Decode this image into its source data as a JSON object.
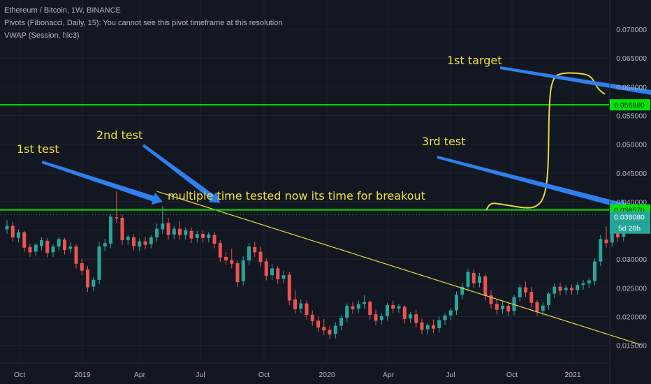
{
  "header": {
    "line1": "Ethereum / Bitcoin, 1W, BINANCE",
    "line2": "Pivots (Fibonacci, Daily, 15): You cannot see this pivot timeframe at this resolution",
    "line3": "VWAP (Session, hlc3)"
  },
  "annotations": {
    "test1": "1st test",
    "test2": "2nd test",
    "test3": "3rd test",
    "target": "1st target",
    "breakout": "multiple time tested now its time for breakout"
  },
  "colors": {
    "background": "#131722",
    "up": "#26a69a",
    "down": "#ef5350",
    "level_line": "#00e600",
    "trendline": "#e6d93a",
    "annotation": "#f0e03c",
    "arrow": "#2f80ed",
    "price_tag_bg": "#26a69a"
  },
  "chart_data": {
    "type": "candlestick",
    "timeframe": "1W",
    "x_tick_labels": [
      "Oct",
      "2019",
      "Apr",
      "Jul",
      "Oct",
      "2020",
      "Apr",
      "Jul",
      "Oct",
      "2021"
    ],
    "y_tick_labels": [
      "0.070000",
      "0.065000",
      "0.060000",
      "0.055000",
      "0.050000",
      "0.045000",
      "0.040000",
      "0.035000",
      "0.030000",
      "0.025000",
      "0.020000",
      "0.015000"
    ],
    "ylim": [
      0.0138,
      0.0745
    ],
    "levels": [
      {
        "label": "0.056860",
        "value": 0.05686
      },
      {
        "label": "0.038570",
        "value": 0.03857
      }
    ],
    "current_price": {
      "label": "0.038080",
      "value": 0.03808,
      "countdown": "5d 20h"
    },
    "trendline": [
      {
        "week": 26,
        "value": 0.0418
      },
      {
        "week": 110,
        "value": 0.0151
      }
    ],
    "projection": [
      [
        0.0385,
        0.0398,
        0.0396,
        0.0392,
        0.0389,
        0.039,
        0.0403,
        0.0445,
        0.0578,
        0.0618,
        0.0624,
        0.0624,
        0.062,
        0.0596,
        0.0587
      ]
    ],
    "candles": [
      [
        0.0352,
        0.0368,
        0.0358
      ],
      [
        0.0358,
        0.0365,
        0.0338
      ],
      [
        0.0337,
        0.0352,
        0.0347
      ],
      [
        0.0347,
        0.0349,
        0.032
      ],
      [
        0.0321,
        0.0327,
        0.0312
      ],
      [
        0.0313,
        0.0328,
        0.0325
      ],
      [
        0.0323,
        0.0338,
        0.0333
      ],
      [
        0.0332,
        0.0337,
        0.0311
      ],
      [
        0.0312,
        0.0326,
        0.0322
      ],
      [
        0.0322,
        0.0339,
        0.0335
      ],
      [
        0.0334,
        0.0337,
        0.0316
      ],
      [
        0.0318,
        0.0329,
        0.0322
      ],
      [
        0.0322,
        0.0326,
        0.0292
      ],
      [
        0.0293,
        0.0301,
        0.028
      ],
      [
        0.0282,
        0.0288,
        0.0251
      ],
      [
        0.0252,
        0.0269,
        0.0264
      ],
      [
        0.0264,
        0.033,
        0.0322
      ],
      [
        0.0322,
        0.0335,
        0.0328
      ],
      [
        0.0327,
        0.0378,
        0.0374
      ],
      [
        0.0373,
        0.0418,
        0.0371
      ],
      [
        0.0372,
        0.0377,
        0.0333
      ],
      [
        0.0333,
        0.0343,
        0.0339
      ],
      [
        0.0338,
        0.0343,
        0.0323
      ],
      [
        0.0322,
        0.0336,
        0.0331
      ],
      [
        0.0331,
        0.0339,
        0.0325
      ],
      [
        0.0326,
        0.0342,
        0.0338
      ],
      [
        0.0338,
        0.0362,
        0.0353
      ],
      [
        0.0352,
        0.0392,
        0.0362
      ],
      [
        0.0363,
        0.0372,
        0.0342
      ],
      [
        0.0343,
        0.0358,
        0.0353
      ],
      [
        0.0353,
        0.0366,
        0.0342
      ],
      [
        0.0342,
        0.0355,
        0.035
      ],
      [
        0.0349,
        0.0355,
        0.0336
      ],
      [
        0.0337,
        0.0349,
        0.0344
      ],
      [
        0.0344,
        0.035,
        0.0337
      ],
      [
        0.0337,
        0.0347,
        0.0343
      ],
      [
        0.0342,
        0.0347,
        0.0327
      ],
      [
        0.0328,
        0.0333,
        0.0303
      ],
      [
        0.0304,
        0.0312,
        0.0298
      ],
      [
        0.0298,
        0.0318,
        0.0292
      ],
      [
        0.0293,
        0.0298,
        0.026
      ],
      [
        0.0262,
        0.0305,
        0.0298
      ],
      [
        0.0298,
        0.0328,
        0.0322
      ],
      [
        0.0321,
        0.033,
        0.0312
      ],
      [
        0.0313,
        0.0322,
        0.0295
      ],
      [
        0.0296,
        0.0301,
        0.0271
      ],
      [
        0.0272,
        0.0291,
        0.0284
      ],
      [
        0.0284,
        0.0288,
        0.0265
      ],
      [
        0.0266,
        0.028,
        0.0272
      ],
      [
        0.0273,
        0.0277,
        0.0228
      ],
      [
        0.023,
        0.0246,
        0.0213
      ],
      [
        0.0214,
        0.023,
        0.0223
      ],
      [
        0.0223,
        0.0228,
        0.0203
      ],
      [
        0.0203,
        0.0211,
        0.0192
      ],
      [
        0.0193,
        0.0201,
        0.0181
      ],
      [
        0.0182,
        0.0196,
        0.0176
      ],
      [
        0.0177,
        0.0183,
        0.0169
      ],
      [
        0.017,
        0.019,
        0.0184
      ],
      [
        0.0184,
        0.0202,
        0.0198
      ],
      [
        0.0198,
        0.0223,
        0.0219
      ],
      [
        0.0218,
        0.0226,
        0.0213
      ],
      [
        0.0214,
        0.0228,
        0.0222
      ],
      [
        0.0222,
        0.0237,
        0.0225
      ],
      [
        0.0226,
        0.0229,
        0.0203
      ],
      [
        0.0204,
        0.0212,
        0.0193
      ],
      [
        0.0194,
        0.0206,
        0.0201
      ],
      [
        0.0201,
        0.0224,
        0.022
      ],
      [
        0.022,
        0.0228,
        0.0214
      ],
      [
        0.0214,
        0.0222,
        0.0218
      ],
      [
        0.0217,
        0.022,
        0.0196
      ],
      [
        0.0197,
        0.0208,
        0.0204
      ],
      [
        0.0204,
        0.0212,
        0.0189
      ],
      [
        0.019,
        0.0197,
        0.0177
      ],
      [
        0.0178,
        0.0189,
        0.0185
      ],
      [
        0.0185,
        0.0195,
        0.0179
      ],
      [
        0.018,
        0.02,
        0.0194
      ],
      [
        0.0194,
        0.0206,
        0.0202
      ],
      [
        0.0202,
        0.0215,
        0.0211
      ],
      [
        0.0211,
        0.0244,
        0.0238
      ],
      [
        0.0238,
        0.0258,
        0.0252
      ],
      [
        0.0252,
        0.0283,
        0.0278
      ],
      [
        0.0276,
        0.0282,
        0.0258
      ],
      [
        0.0259,
        0.0276,
        0.027
      ],
      [
        0.027,
        0.0274,
        0.0236
      ],
      [
        0.0237,
        0.0246,
        0.0222
      ],
      [
        0.0222,
        0.0231,
        0.0212
      ],
      [
        0.0213,
        0.0226,
        0.0219
      ],
      [
        0.0219,
        0.0226,
        0.0209
      ],
      [
        0.021,
        0.0238,
        0.0234
      ],
      [
        0.0234,
        0.0256,
        0.0251
      ],
      [
        0.0251,
        0.0261,
        0.0242
      ],
      [
        0.0243,
        0.0252,
        0.0224
      ],
      [
        0.0225,
        0.0229,
        0.0209
      ],
      [
        0.021,
        0.0225,
        0.0219
      ],
      [
        0.022,
        0.0243,
        0.024
      ],
      [
        0.024,
        0.0258,
        0.0252
      ],
      [
        0.0252,
        0.0259,
        0.0245
      ],
      [
        0.0246,
        0.0255,
        0.025
      ],
      [
        0.025,
        0.0256,
        0.0246
      ],
      [
        0.0246,
        0.026,
        0.0255
      ],
      [
        0.0255,
        0.0264,
        0.0258
      ],
      [
        0.0258,
        0.0268,
        0.0263
      ],
      [
        0.0262,
        0.0301,
        0.0296
      ],
      [
        0.0296,
        0.0342,
        0.0335
      ],
      [
        0.0334,
        0.0357,
        0.0328
      ],
      [
        0.0329,
        0.0378,
        0.0363
      ],
      [
        0.0362,
        0.0371,
        0.0338
      ],
      [
        0.0339,
        0.0368,
        0.0362
      ],
      [
        0.0362,
        0.0385,
        0.0381
      ]
    ],
    "annotation_targets": [
      {
        "name": "test1",
        "week": 27,
        "value": 0.04
      },
      {
        "name": "test2",
        "week": 37,
        "value": 0.0398
      },
      {
        "name": "test3",
        "week": 108,
        "value": 0.039
      },
      {
        "name": "target",
        "week": 124,
        "value": 0.057
      }
    ]
  }
}
